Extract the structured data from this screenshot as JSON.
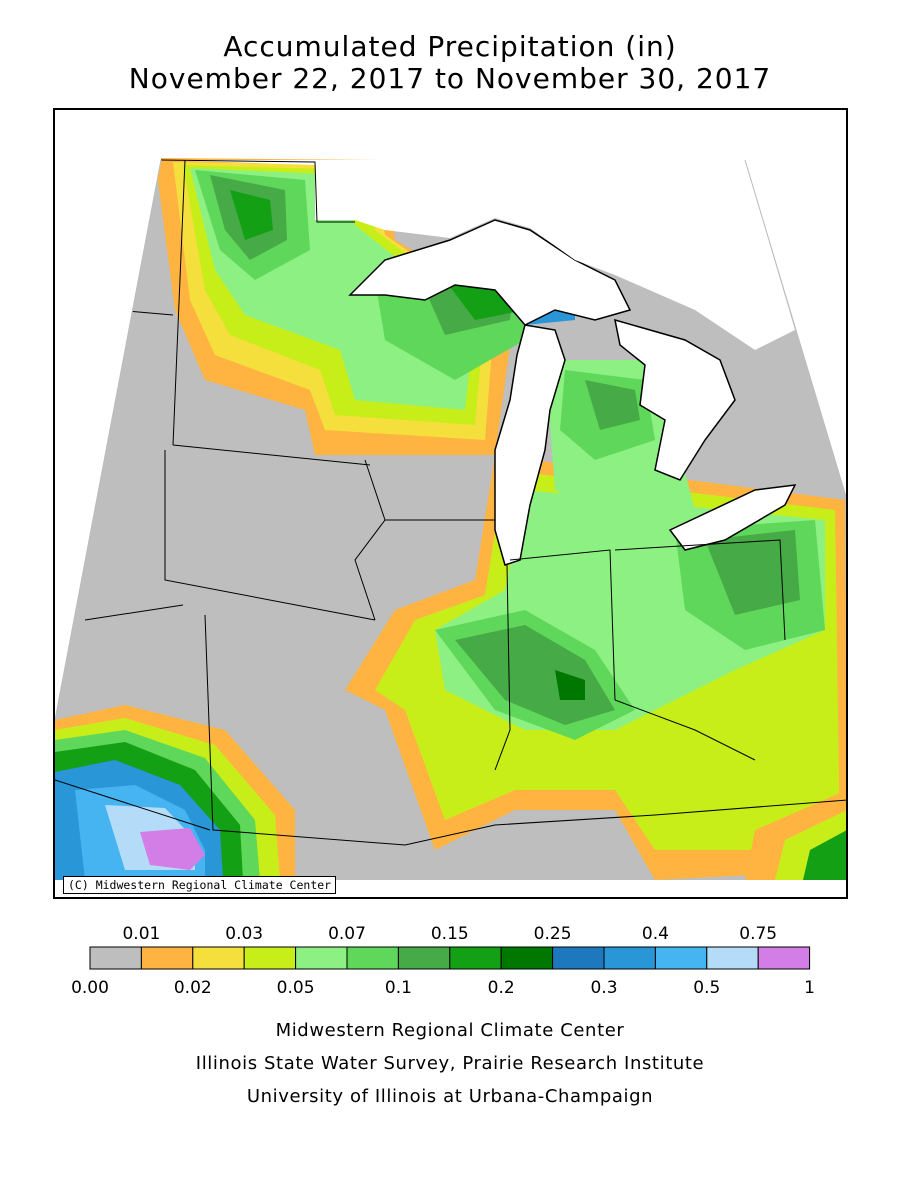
{
  "title": {
    "line1": "Accumulated Precipitation (in)",
    "line2": "November 22, 2017 to November 30, 2017"
  },
  "map": {
    "copyright": "(C) Midwestern Regional Climate Center"
  },
  "legend": {
    "top_labels": [
      "0.01",
      "0.03",
      "0.07",
      "0.15",
      "0.25",
      "0.4",
      "0.75"
    ],
    "bottom_labels": [
      "0.00",
      "0.02",
      "0.05",
      "0.1",
      "0.2",
      "0.3",
      "0.5",
      "1"
    ],
    "colors": [
      "#bebebe",
      "#ffb441",
      "#f4df3c",
      "#c8ee19",
      "#8cf082",
      "#5fd75a",
      "#46aa46",
      "#14a014",
      "#007800",
      "#1e78be",
      "#2896d7",
      "#46b4f0",
      "#b4dcf8",
      "#d27ee6"
    ]
  },
  "credits": [
    "Midwestern Regional Climate Center",
    "Illinois State Water Survey, Prairie Research Institute",
    "University of Illinois at Urbana-Champaign"
  ]
}
